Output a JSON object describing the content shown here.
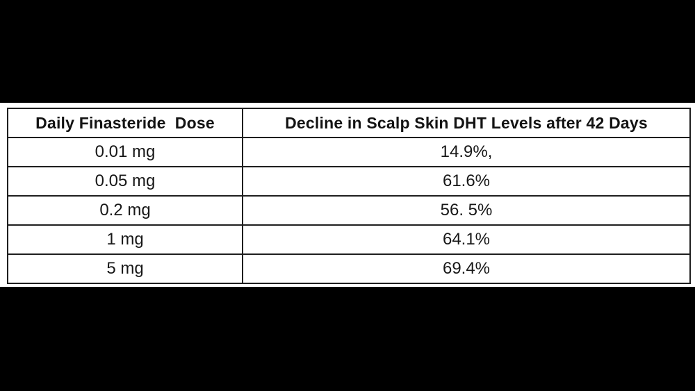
{
  "colors": {
    "letterbox": "#000000",
    "canvas": "#ffffff",
    "border": "#1e1e1e",
    "text": "#181818"
  },
  "chart_data": {
    "type": "table",
    "title": "",
    "columns": [
      "Daily Finasteride  Dose",
      "Decline in Scalp Skin DHT Levels after 42 Days"
    ],
    "rows": [
      [
        "0.01 mg",
        "14.9%,"
      ],
      [
        "0.05 mg",
        "61.6%"
      ],
      [
        "0.2 mg",
        "56. 5%"
      ],
      [
        "1 mg",
        "64.1%"
      ],
      [
        "5 mg",
        "69.4%"
      ]
    ]
  }
}
